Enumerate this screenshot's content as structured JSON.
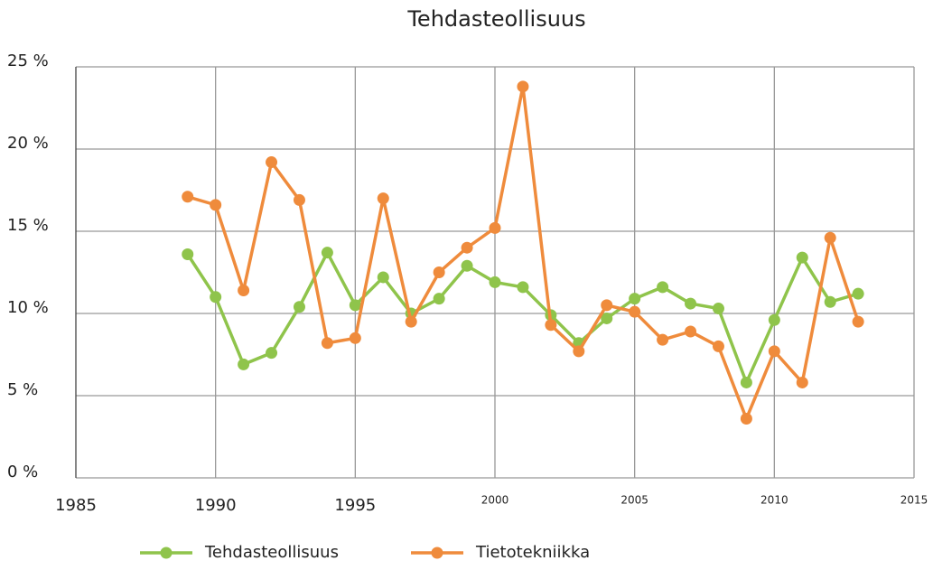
{
  "chart_data": {
    "type": "line",
    "title": "Tehdasteollisuus",
    "x": [
      1989,
      1990,
      1991,
      1992,
      1993,
      1994,
      1995,
      1996,
      1997,
      1998,
      1999,
      2000,
      2001,
      2002,
      2003,
      2004,
      2005,
      2006,
      2007,
      2008,
      2009,
      2010,
      2011,
      2012,
      2013
    ],
    "series": [
      {
        "name": "Tehdasteollisuus",
        "color": "#8fc44b",
        "values": [
          13.6,
          11.0,
          6.9,
          7.6,
          10.4,
          13.7,
          10.5,
          12.2,
          10.0,
          10.9,
          12.9,
          11.9,
          11.6,
          9.9,
          8.2,
          9.7,
          10.9,
          11.6,
          10.6,
          10.3,
          5.8,
          9.6,
          13.4,
          10.7,
          11.2
        ]
      },
      {
        "name": "Tietotekniikka",
        "color": "#ef8b3c",
        "values": [
          17.1,
          16.6,
          11.4,
          19.2,
          16.9,
          8.2,
          8.5,
          17.0,
          9.5,
          12.5,
          14.0,
          15.2,
          23.8,
          9.3,
          7.7,
          10.5,
          10.1,
          8.4,
          8.9,
          8.0,
          3.6,
          7.7,
          5.8,
          14.6,
          9.5
        ]
      }
    ],
    "xlim": [
      1985,
      2015
    ],
    "xticks": [
      1985,
      1990,
      1995,
      2000,
      2005,
      2010,
      2015
    ],
    "ylim": [
      0,
      25
    ],
    "yticks": [
      {
        "value": 0,
        "label": "0 %"
      },
      {
        "value": 5,
        "label": "5 %"
      },
      {
        "value": 10,
        "label": "10 %"
      },
      {
        "value": 15,
        "label": "15 %"
      },
      {
        "value": 20,
        "label": "20 %"
      },
      {
        "value": 25,
        "label": "25 %"
      }
    ],
    "grid": true,
    "legend": "bottom"
  }
}
